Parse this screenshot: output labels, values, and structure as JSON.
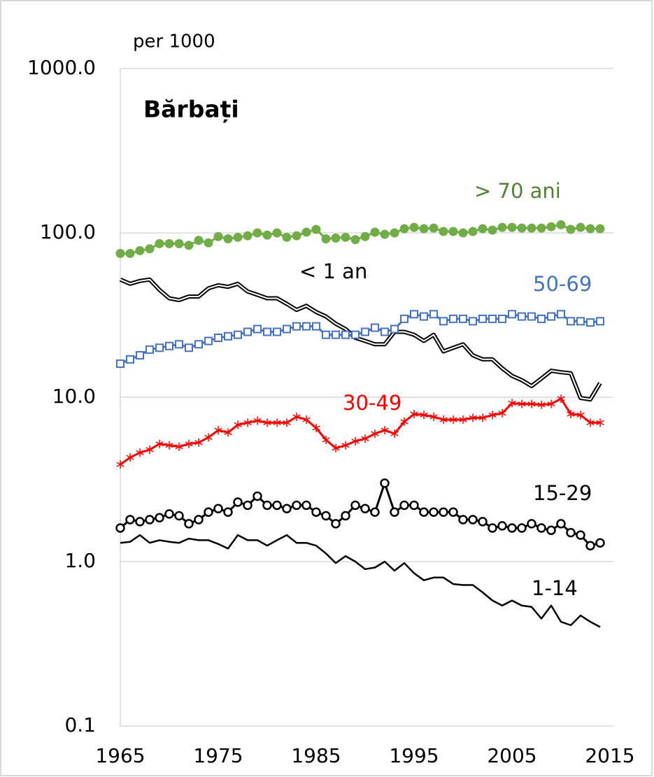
{
  "chart_data": {
    "type": "line",
    "title": "Bărbați",
    "y_label": "per 1000",
    "log_scale": true,
    "grid": true,
    "xlim": [
      1965,
      2015
    ],
    "xticks": [
      1965,
      1975,
      1985,
      1995,
      2005,
      2015
    ],
    "ylim": [
      0.1,
      1000
    ],
    "yticks": [
      {
        "value": 1000,
        "label": "1000.0"
      },
      {
        "value": 100,
        "label": "100.0"
      },
      {
        "value": 10,
        "label": "10.0"
      },
      {
        "value": 1,
        "label": "1.0"
      },
      0.1
    ],
    "x": [
      1965,
      1966,
      1967,
      1968,
      1969,
      1970,
      1971,
      1972,
      1973,
      1974,
      1975,
      1976,
      1977,
      1978,
      1979,
      1980,
      1981,
      1982,
      1983,
      1984,
      1985,
      1986,
      1987,
      1988,
      1989,
      1990,
      1991,
      1992,
      1993,
      1994,
      1995,
      1996,
      1997,
      1998,
      1999,
      2000,
      2001,
      2002,
      2003,
      2004,
      2005,
      2006,
      2007,
      2008,
      2009,
      2010,
      2011,
      2012,
      2013,
      2014
    ],
    "series": [
      {
        "name": "> 70 ani",
        "color": "#70ad47",
        "label_color": "#548235",
        "marker": "circle-filled",
        "values": [
          75,
          75,
          78,
          80,
          86,
          86,
          86,
          84,
          90,
          87,
          95,
          92,
          94,
          96,
          100,
          97,
          100,
          94,
          96,
          101,
          105,
          92,
          93,
          94,
          91,
          95,
          101,
          98,
          100,
          106,
          108,
          106,
          107,
          102,
          102,
          100,
          102,
          106,
          104,
          108,
          108,
          107,
          107,
          107,
          109,
          112,
          105,
          108,
          106,
          106
        ]
      },
      {
        "name": "< 1 an",
        "color": "#000000",
        "label_color": "#000000",
        "marker": "double",
        "values": [
          52,
          49,
          51,
          52,
          45,
          40,
          39,
          41,
          41,
          46,
          48,
          47,
          49,
          44,
          42,
          40,
          40,
          37,
          34,
          36,
          33,
          31,
          28,
          26,
          23,
          22,
          21,
          21,
          25,
          25,
          24,
          22,
          24,
          19,
          20,
          21,
          18,
          17,
          17,
          15,
          13.5,
          12.7,
          11.7,
          13,
          14.5,
          14.2,
          14,
          9.9,
          9.7,
          12.2
        ]
      },
      {
        "name": "50-69",
        "color": "#4472c4",
        "label_color": "#4472c4",
        "marker": "square-open",
        "values": [
          16,
          17,
          18,
          19.5,
          20,
          20.5,
          21,
          20,
          21,
          22,
          23,
          23.5,
          24,
          25,
          26,
          25,
          25,
          26,
          27,
          27,
          27,
          24,
          24,
          24,
          24,
          25,
          26.5,
          25,
          26,
          30,
          32,
          31,
          32,
          29,
          30,
          30,
          29,
          30,
          30,
          30,
          32,
          31,
          31,
          30,
          31,
          32,
          29,
          29,
          28.5,
          29
        ]
      },
      {
        "name": "30-49",
        "color": "#ff0000",
        "label_color": "#ff0000",
        "marker": "asterisk",
        "values": [
          3.9,
          4.3,
          4.6,
          4.8,
          5.2,
          5.1,
          5.0,
          5.2,
          5.3,
          5.7,
          6.3,
          6.1,
          6.8,
          7.0,
          7.2,
          7.0,
          7.0,
          7.0,
          7.6,
          7.3,
          6.5,
          5.5,
          4.9,
          5.1,
          5.4,
          5.6,
          6.0,
          6.3,
          6.0,
          7.1,
          7.9,
          7.8,
          7.6,
          7.3,
          7.3,
          7.3,
          7.5,
          7.5,
          7.8,
          8.0,
          9.2,
          9.1,
          9.1,
          9.0,
          9.1,
          9.8,
          7.9,
          7.8,
          7.0,
          7.0
        ]
      },
      {
        "name": "15-29",
        "color": "#000000",
        "label_color": "#000000",
        "marker": "circle-open",
        "values": [
          1.6,
          1.8,
          1.75,
          1.8,
          1.85,
          1.95,
          1.9,
          1.7,
          1.8,
          2.0,
          2.1,
          2.0,
          2.3,
          2.2,
          2.5,
          2.2,
          2.2,
          2.1,
          2.2,
          2.2,
          2.0,
          1.9,
          1.7,
          1.9,
          2.2,
          2.1,
          2.0,
          3.0,
          2.0,
          2.2,
          2.2,
          2.0,
          2.0,
          2.0,
          2.0,
          1.8,
          1.8,
          1.75,
          1.6,
          1.65,
          1.6,
          1.6,
          1.7,
          1.6,
          1.55,
          1.7,
          1.5,
          1.45,
          1.25,
          1.3
        ]
      },
      {
        "name": "1-14",
        "color": "#000000",
        "label_color": "#000000",
        "marker": "none",
        "values": [
          1.3,
          1.32,
          1.45,
          1.3,
          1.35,
          1.32,
          1.3,
          1.38,
          1.35,
          1.35,
          1.28,
          1.2,
          1.45,
          1.35,
          1.35,
          1.25,
          1.35,
          1.45,
          1.3,
          1.3,
          1.25,
          1.12,
          0.98,
          1.08,
          1.0,
          0.9,
          0.92,
          1.0,
          0.88,
          0.98,
          0.85,
          0.77,
          0.8,
          0.8,
          0.73,
          0.72,
          0.72,
          0.65,
          0.58,
          0.54,
          0.58,
          0.54,
          0.53,
          0.45,
          0.54,
          0.43,
          0.41,
          0.47,
          0.43,
          0.4
        ]
      }
    ]
  }
}
